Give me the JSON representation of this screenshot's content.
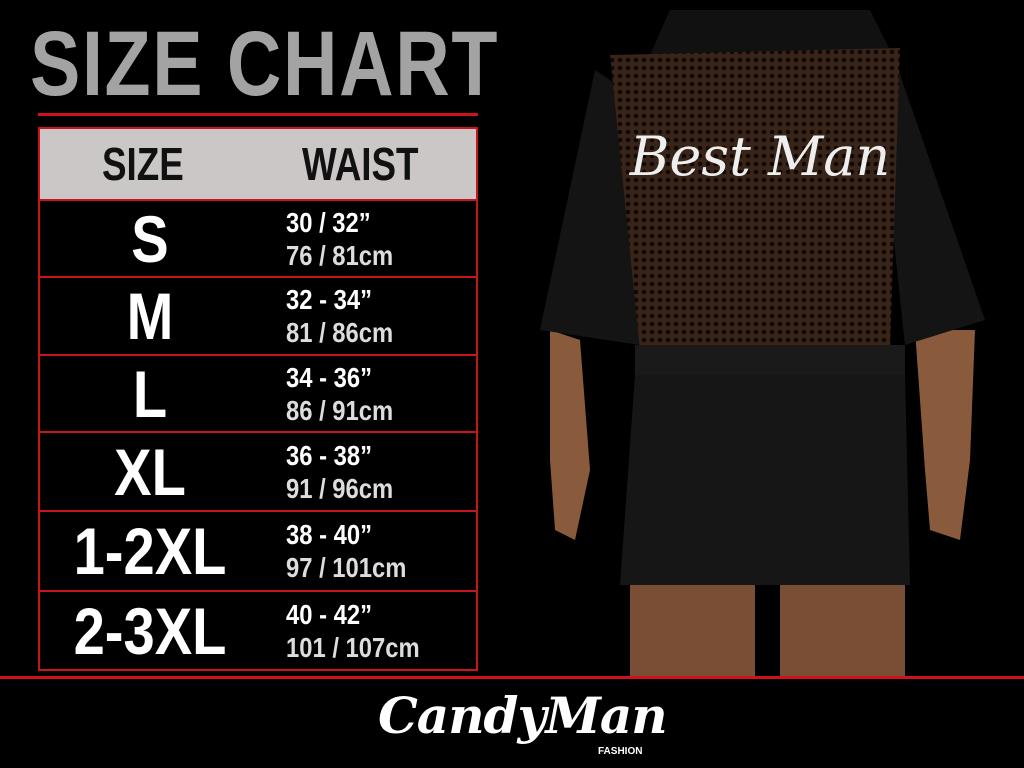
{
  "title": "SIZE CHART",
  "table": {
    "headers": {
      "size": "SIZE",
      "waist": "WAIST"
    },
    "rows": [
      {
        "size": "S",
        "inches": "30 / 32”",
        "cm": "76 / 81cm"
      },
      {
        "size": "M",
        "inches": "32 - 34”",
        "cm": "81 / 86cm"
      },
      {
        "size": "L",
        "inches": "34 - 36”",
        "cm": "86 / 91cm"
      },
      {
        "size": "XL",
        "inches": "36 - 38”",
        "cm": "91 / 96cm"
      },
      {
        "size": "1-2XL",
        "inches": "38 - 40”",
        "cm": "97 / 101cm"
      },
      {
        "size": "2-3XL",
        "inches": "40 - 42”",
        "cm": "101 / 107cm"
      }
    ]
  },
  "product_print": "Best Man",
  "brand": {
    "name": "CandyMan",
    "sub": "FASHION"
  },
  "colors": {
    "accent": "#d0121b",
    "title": "#a3a3a3",
    "header_bg": "#cbc7c7",
    "background": "#000000"
  }
}
